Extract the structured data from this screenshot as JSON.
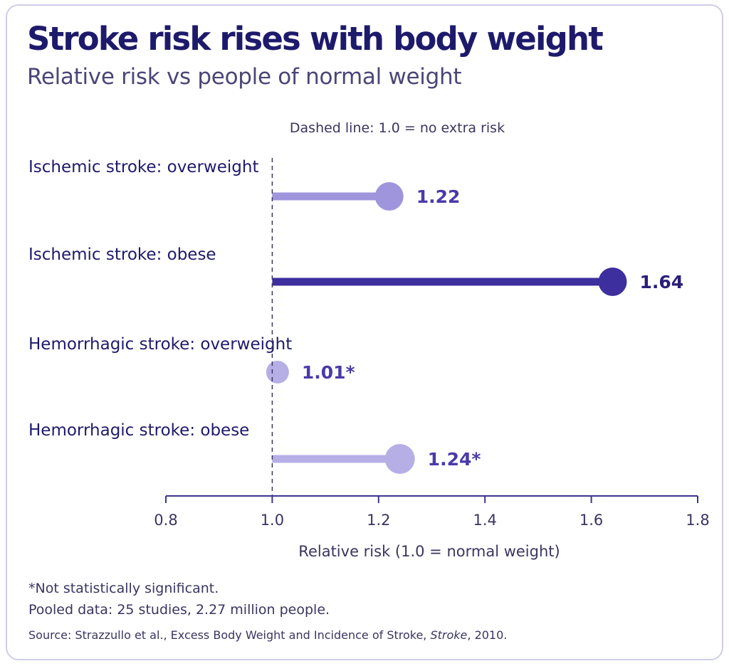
{
  "title": "Stroke risk rises with body weight",
  "subtitle": "Relative risk vs people of normal weight",
  "reference_note": "Dashed line: 1.0 = no extra risk",
  "chart_data": {
    "type": "lollipop",
    "baseline": 1.0,
    "xlim": [
      0.8,
      1.8
    ],
    "xticks": [
      0.8,
      1.0,
      1.2,
      1.4,
      1.6,
      1.8
    ],
    "xtick_labels": [
      "0.8",
      "1.0",
      "1.2",
      "1.4",
      "1.6",
      "1.8"
    ],
    "xlabel": "Relative risk (1.0 = normal weight)",
    "categories": [
      "Ischemic stroke: overweight",
      "Ischemic stroke: obese",
      "Hemorrhagic stroke: overweight",
      "Hemorrhagic stroke: obese"
    ],
    "values": [
      1.22,
      1.64,
      1.01,
      1.24
    ],
    "value_labels": [
      "1.22",
      "1.64",
      "1.01*",
      "1.24*"
    ],
    "colors": [
      "#9f95dd",
      "#3d2f9e",
      "#b6afe6",
      "#b6afe6"
    ],
    "label_colors": [
      "#4a3aa8",
      "#2a1f7a",
      "#4a3aa8",
      "#4a3aa8"
    ]
  },
  "footnote": "*Not statistically significant.",
  "pooled_note": "Pooled data: 25 studies, 2.27 million people.",
  "source": {
    "prefix": "Source: Strazzullo et al., Excess Body Weight and Incidence of Stroke, ",
    "journal": "Stroke",
    "suffix": ", 2010."
  }
}
